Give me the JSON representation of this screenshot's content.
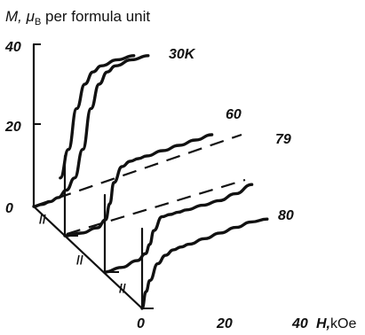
{
  "chart_data": {
    "type": "line",
    "title": "",
    "ylabel_prefix": "M, ",
    "ylabel_mu": "μ",
    "ylabel_sub": "B",
    "ylabel_suffix": " per formula unit",
    "xlabel_h": "H,",
    "xlabel_unit": "kOe",
    "y_ticks": [
      "0",
      "20",
      "40"
    ],
    "x_ticks": [
      "0",
      "20",
      "40"
    ],
    "xlim": [
      0,
      40
    ],
    "ylim": [
      0,
      40
    ],
    "series": [
      {
        "name": "30K",
        "x": [
          0,
          2,
          4,
          6,
          8,
          10,
          12,
          14,
          16,
          18,
          20,
          24,
          28
        ],
        "values": [
          0,
          0.5,
          1.2,
          2.2,
          4,
          7,
          14,
          24,
          30,
          33,
          34.5,
          36,
          37
        ]
      },
      {
        "name": "60",
        "x": [
          0,
          4,
          8,
          10,
          11,
          12,
          14,
          16,
          18,
          20,
          24,
          28,
          32,
          36
        ],
        "values": [
          0,
          0.5,
          1.5,
          3,
          6,
          10,
          13,
          14,
          14.5,
          15,
          16,
          17,
          18,
          19
        ]
      },
      {
        "name": "79",
        "x": [
          0,
          4,
          8,
          10,
          11,
          12,
          14,
          16,
          18,
          20,
          24,
          28,
          32,
          36
        ],
        "values": [
          0,
          1,
          2.5,
          4,
          6,
          9,
          12,
          12.5,
          13,
          13.5,
          14.5,
          15.5,
          17,
          19
        ]
      },
      {
        "name": "80",
        "x": [
          0,
          1,
          2,
          4,
          6,
          8,
          10,
          12,
          16,
          20,
          24,
          28,
          32
        ],
        "values": [
          0,
          3,
          5,
          8,
          9.5,
          10.5,
          11,
          11.5,
          12.5,
          13.5,
          14.5,
          15.5,
          16
        ]
      }
    ]
  }
}
